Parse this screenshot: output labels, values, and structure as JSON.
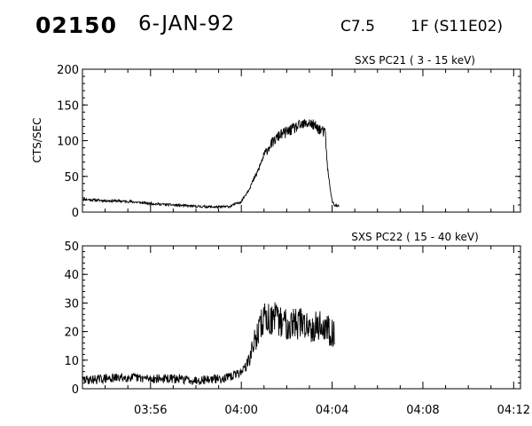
{
  "header": {
    "event_id": "02150",
    "date": "6-JAN-92",
    "flare_class": "C7.5",
    "flare_info": "1F (S11E02)"
  },
  "chart_data": [
    {
      "type": "line",
      "title": "SXS PC21  (  3 - 15 keV)",
      "ylabel": "CTS/SEC",
      "xlabel": "",
      "x_units": "minutes after 03:53 UT",
      "ylim": [
        0,
        200
      ],
      "yticks": [
        0,
        50,
        100,
        150,
        200
      ],
      "xlim": [
        0,
        19.3
      ],
      "noise_amp": 5,
      "series": [
        {
          "x": [
            0,
            1,
            2,
            3,
            4,
            5,
            6,
            6.5,
            7,
            7.3,
            7.7,
            8,
            8.3,
            8.7,
            9,
            9.5,
            10,
            10.5,
            10.7,
            10.8,
            11,
            11.1,
            11.3
          ],
          "y": [
            18,
            16,
            15,
            12,
            10,
            8,
            7,
            8,
            15,
            30,
            55,
            80,
            95,
            108,
            112,
            120,
            125,
            115,
            110,
            60,
            15,
            10,
            8
          ]
        }
      ]
    },
    {
      "type": "line",
      "title": "SXS PC22  ( 15 - 40 keV)",
      "ylabel": "",
      "xlabel": "",
      "x_units": "minutes after 03:53 UT",
      "ylim": [
        0,
        50
      ],
      "yticks": [
        0,
        10,
        20,
        30,
        40,
        50
      ],
      "xlim": [
        0,
        19.3
      ],
      "xtick_labels": [
        "03:56",
        "04:00",
        "04:04",
        "04:08",
        "04:12"
      ],
      "noise_amp": 4.5,
      "series": [
        {
          "x": [
            0,
            1,
            2,
            3,
            4,
            5,
            6,
            6.5,
            7,
            7.3,
            7.6,
            8,
            8.5,
            9,
            9.5,
            10,
            10.5,
            11,
            11.1
          ],
          "y": [
            3,
            3.5,
            4,
            3.5,
            3.5,
            3,
            3.5,
            4,
            6,
            9,
            17,
            25,
            24,
            23,
            23,
            22,
            22,
            20,
            19
          ]
        }
      ]
    }
  ]
}
